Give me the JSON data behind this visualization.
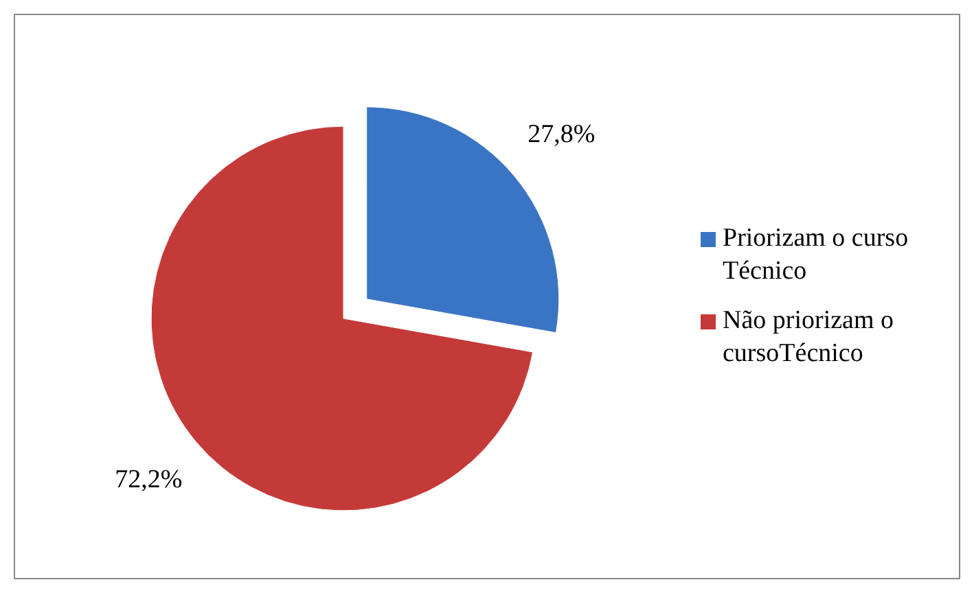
{
  "chart_data": {
    "type": "pie",
    "categories": [
      "Priorizam o curso Técnico",
      "Não priorizam o cursoTécnico"
    ],
    "values": [
      27.8,
      72.2
    ],
    "colors": [
      "#3a74c4",
      "#c43a38"
    ],
    "value_labels": [
      "27,8%",
      "72,2%"
    ],
    "legend": "right"
  }
}
